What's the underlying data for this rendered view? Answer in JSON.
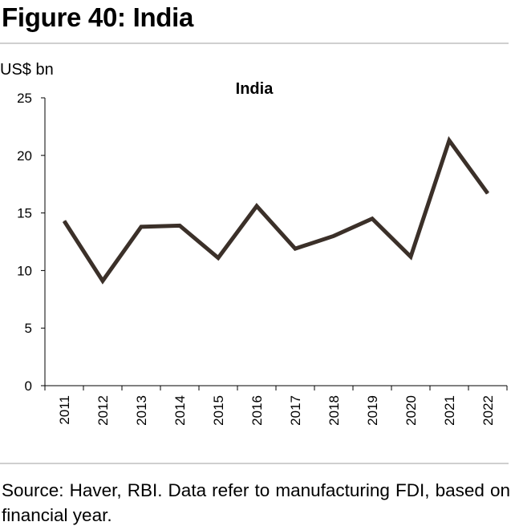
{
  "figure": {
    "title": "Figure 40: India",
    "source": "Source: Haver, RBI. Data refer to manufacturing FDI, based on financial year."
  },
  "chart_data": {
    "type": "line",
    "title": "India",
    "ylabel": "US$ bn",
    "xlabel": "",
    "categories": [
      "2011",
      "2012",
      "2013",
      "2014",
      "2015",
      "2016",
      "2017",
      "2018",
      "2019",
      "2020",
      "2021",
      "2022"
    ],
    "series": [
      {
        "name": "India",
        "values": [
          14.3,
          9.1,
          13.8,
          13.9,
          11.1,
          15.6,
          11.9,
          13.0,
          14.5,
          11.2,
          21.3,
          16.7
        ]
      }
    ],
    "ylim": [
      0,
      25
    ],
    "yticks": [
      0,
      5,
      10,
      15,
      20,
      25
    ],
    "grid": false,
    "line_color": "#3b3029"
  }
}
